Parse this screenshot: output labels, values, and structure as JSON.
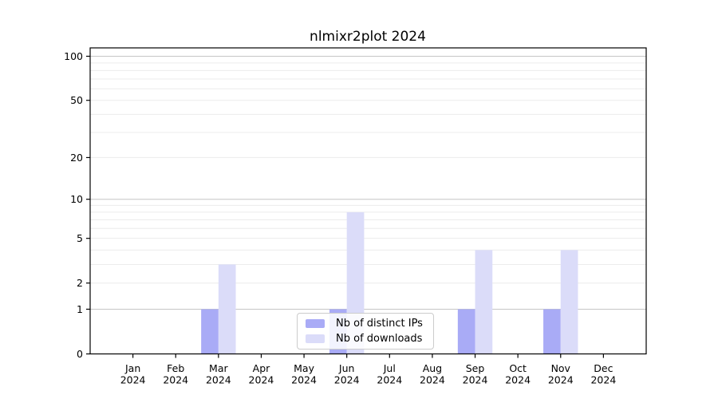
{
  "title": "nlmixr2plot 2024",
  "colors": {
    "ips_bar": "#a9abf6",
    "downloads_bar": "#dbdcf9",
    "major_grid": "#c6c6c6",
    "minor_grid": "#ececec",
    "axis": "#000000",
    "legend_border": "#cccccc",
    "background": "#ffffff"
  },
  "chart_data": {
    "type": "bar",
    "title": "nlmixr2plot 2024",
    "categories": [
      "Jan 2024",
      "Feb 2024",
      "Mar 2024",
      "Apr 2024",
      "May 2024",
      "Jun 2024",
      "Jul 2024",
      "Aug 2024",
      "Sep 2024",
      "Oct 2024",
      "Nov 2024",
      "Dec 2024"
    ],
    "series": [
      {
        "name": "Nb of distinct IPs",
        "color": "#a9abf6",
        "values": [
          0,
          0,
          1,
          0,
          0,
          1,
          0,
          0,
          1,
          0,
          1,
          0
        ]
      },
      {
        "name": "Nb of downloads",
        "color": "#dbdcf9",
        "values": [
          0,
          0,
          3,
          0,
          0,
          8,
          0,
          0,
          4,
          0,
          4,
          0
        ]
      }
    ],
    "xlabel": "",
    "ylabel": "",
    "yscale": "log1p",
    "ylim": [
      0,
      114
    ],
    "yticks": [
      0,
      1,
      2,
      5,
      10,
      20,
      50,
      100
    ],
    "major_gridlines": [
      1,
      10,
      100
    ],
    "minor_gridlines": [
      2,
      3,
      4,
      5,
      6,
      7,
      8,
      9,
      20,
      30,
      40,
      50,
      60,
      70,
      80,
      90
    ],
    "grid": true,
    "legend_position": "lower center inside"
  }
}
